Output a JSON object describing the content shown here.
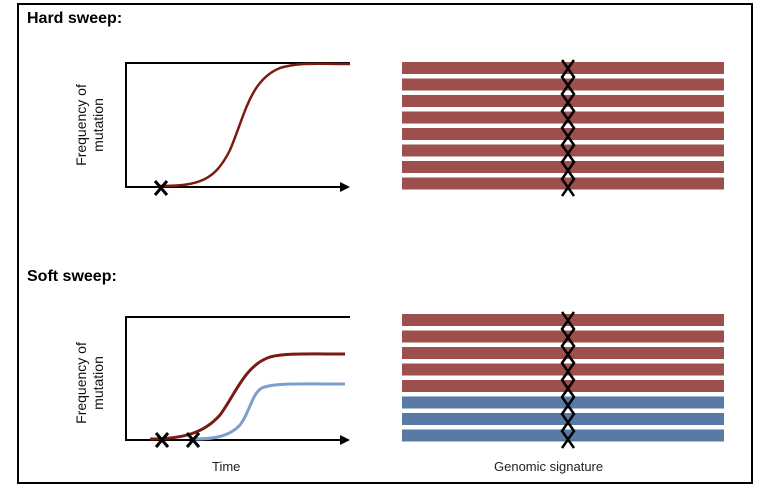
{
  "panels": {
    "hard": {
      "heading": "Hard sweep:"
    },
    "soft": {
      "heading": "Soft sweep:"
    }
  },
  "axis": {
    "ylabel_line1": "Frequency of",
    "ylabel_line2": "mutation",
    "xlabel_time": "Time",
    "xlabel_genome": "Genomic signature"
  },
  "colors": {
    "red_line": "#7a1a10",
    "blue_line": "#7c9fce",
    "red_bar": "#9c4f4d",
    "blue_bar": "#5a7aa6"
  },
  "hard_bars": [
    "red",
    "red",
    "red",
    "red",
    "red",
    "red",
    "red",
    "red"
  ],
  "soft_bars": [
    "red",
    "red",
    "red",
    "red",
    "red",
    "blue",
    "blue",
    "blue"
  ]
}
